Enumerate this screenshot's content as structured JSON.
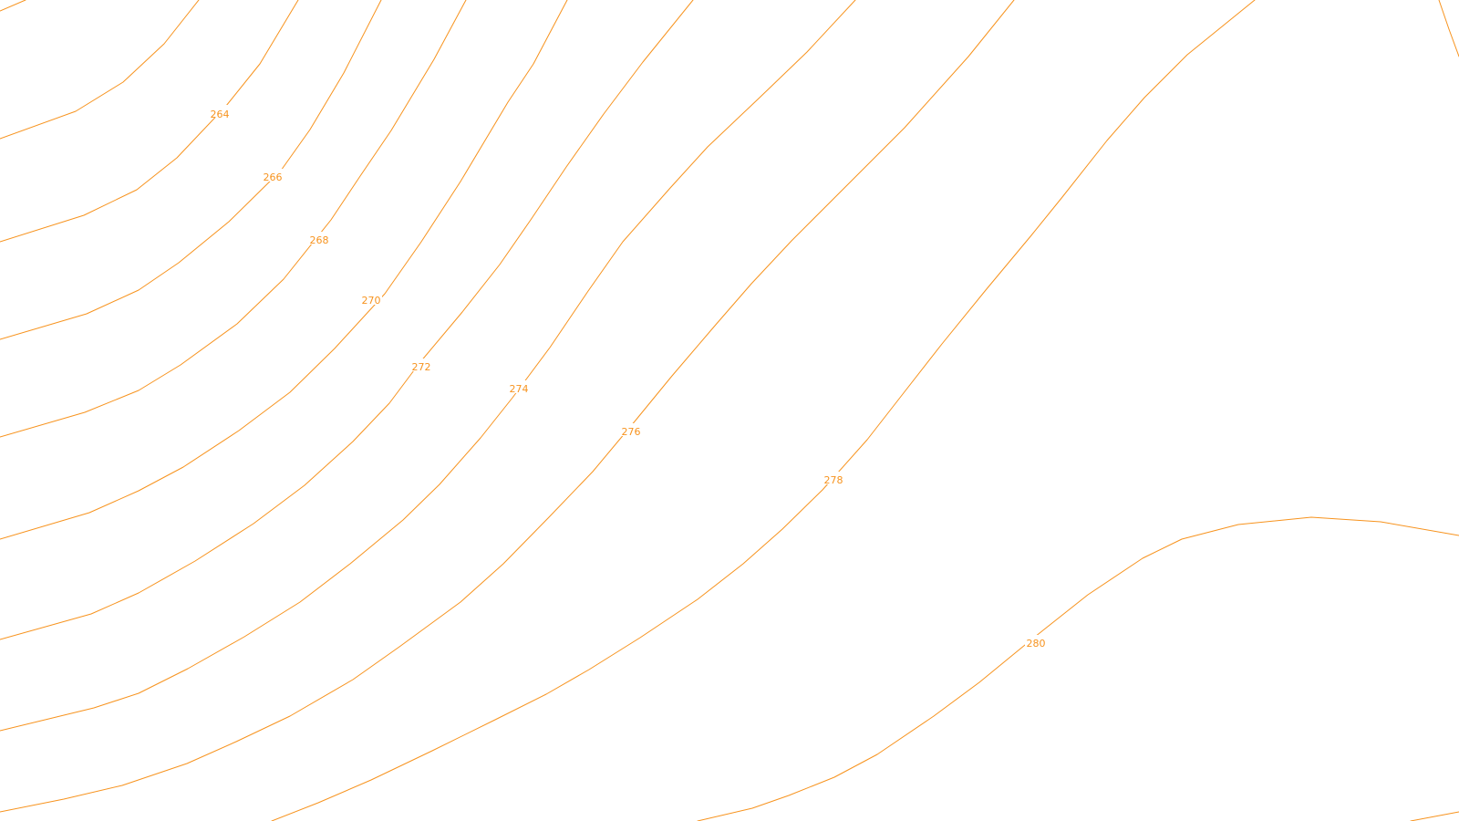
{
  "map": {
    "type": "contour-map",
    "line_color": "#f7931e",
    "label_color": "#f7931e",
    "background_color": "#ffffff",
    "labels": {
      "c264": "264",
      "c266": "266",
      "c268": "268",
      "c270": "270",
      "c272": "272",
      "c274": "274",
      "c276": "276",
      "c278": "278",
      "c280": "280"
    }
  }
}
